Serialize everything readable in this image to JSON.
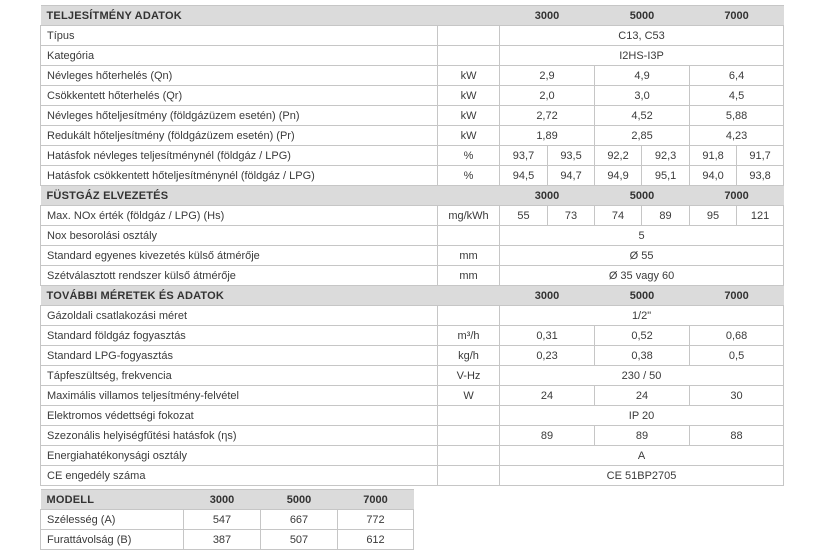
{
  "colors": {
    "section_header_bg": "#dbdbdb",
    "border": "#c6c6c6",
    "text": "#3a3a3a"
  },
  "main_table": {
    "models": [
      "3000",
      "5000",
      "7000"
    ],
    "sections": [
      {
        "title": "TELJESÍTMÉNY ADATOK",
        "rows": [
          {
            "label": "Típus",
            "unit": "",
            "span": "C13, C53"
          },
          {
            "label": "Kategória",
            "unit": "",
            "span": "I2HS-I3P"
          },
          {
            "label": "Névleges hőterhelés (Qn)",
            "unit": "kW",
            "per_model": [
              "2,9",
              "4,9",
              "6,4"
            ]
          },
          {
            "label": "Csökkentett hőterhelés (Qr)",
            "unit": "kW",
            "per_model": [
              "2,0",
              "3,0",
              "4,5"
            ]
          },
          {
            "label": "Névleges hőteljesítmény (földgázüzem esetén) (Pn)",
            "unit": "kW",
            "per_model": [
              "2,72",
              "4,52",
              "5,88"
            ]
          },
          {
            "label": "Redukált hőteljesítmény (földgázüzem esetén) (Pr)",
            "unit": "kW",
            "per_model": [
              "1,89",
              "2,85",
              "4,23"
            ]
          },
          {
            "label": "Hatásfok névleges teljesítménynél (földgáz / LPG)",
            "unit": "%",
            "six": [
              "93,7",
              "93,5",
              "92,2",
              "92,3",
              "91,8",
              "91,7"
            ]
          },
          {
            "label": "Hatásfok csökkentett hőteljesítménynél (földgáz / LPG)",
            "unit": "%",
            "six": [
              "94,5",
              "94,7",
              "94,9",
              "95,1",
              "94,0",
              "93,8"
            ]
          }
        ]
      },
      {
        "title": "FÜSTGÁZ ELVEZETÉS",
        "rows": [
          {
            "label": "Max. NOx érték (földgáz / LPG) (Hs)",
            "unit": "mg/kWh",
            "six": [
              "55",
              "73",
              "74",
              "89",
              "95",
              "121"
            ]
          },
          {
            "label": "Nox besorolási osztály",
            "unit": "",
            "span": "5"
          },
          {
            "label": "Standard egyenes kivezetés külső átmérője",
            "unit": "mm",
            "span": "Ø 55"
          },
          {
            "label": "Szétválasztott rendszer külső átmérője",
            "unit": "mm",
            "span": "Ø 35 vagy 60"
          }
        ]
      },
      {
        "title": "TOVÁBBI MÉRETEK ÉS ADATOK",
        "rows": [
          {
            "label": "Gázoldali csatlakozási méret",
            "unit": "",
            "span": "1/2\""
          },
          {
            "label": "Standard földgáz fogyasztás",
            "unit": "m³/h",
            "per_model": [
              "0,31",
              "0,52",
              "0,68"
            ]
          },
          {
            "label": "Standard LPG-fogyasztás",
            "unit": "kg/h",
            "per_model": [
              "0,23",
              "0,38",
              "0,5"
            ]
          },
          {
            "label": "Tápfeszültség, frekvencia",
            "unit": "V-Hz",
            "span": "230 / 50"
          },
          {
            "label": "Maximális villamos teljesítmény-felvétel",
            "unit": "W",
            "per_model": [
              "24",
              "24",
              "30"
            ]
          },
          {
            "label": "Elektromos védettségi fokozat",
            "unit": "",
            "span": "IP 20"
          },
          {
            "label": "Szezonális helyiségfűtési hatásfok (ηs)",
            "unit": "",
            "per_model": [
              "89",
              "89",
              "88"
            ]
          },
          {
            "label": "Energiahatékonysági osztály",
            "unit": "",
            "span": "A"
          },
          {
            "label": "CE engedély száma",
            "unit": "",
            "span": "CE 51BP2705"
          }
        ]
      }
    ]
  },
  "model_table": {
    "header_label": "MODELL",
    "models": [
      "3000",
      "5000",
      "7000"
    ],
    "rows": [
      {
        "label": "Szélesség (A)",
        "values": [
          "547",
          "667",
          "772"
        ]
      },
      {
        "label": "Furattávolság (B)",
        "values": [
          "387",
          "507",
          "612"
        ]
      }
    ]
  }
}
